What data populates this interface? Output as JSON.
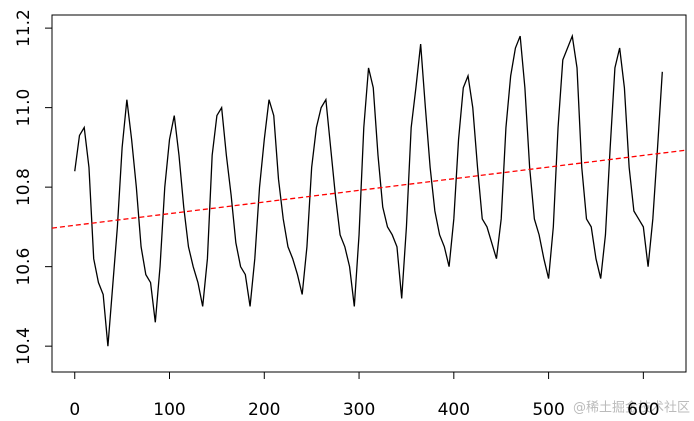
{
  "chart_data": {
    "type": "line",
    "x": [
      0,
      5,
      10,
      15,
      20,
      25,
      30,
      35,
      40,
      45,
      50,
      55,
      60,
      65,
      70,
      75,
      80,
      85,
      90,
      95,
      100,
      105,
      110,
      115,
      120,
      125,
      130,
      135,
      140,
      145,
      150,
      155,
      160,
      165,
      170,
      175,
      180,
      185,
      190,
      195,
      200,
      205,
      210,
      215,
      220,
      225,
      230,
      235,
      240,
      245,
      250,
      255,
      260,
      265,
      270,
      275,
      280,
      285,
      290,
      295,
      300,
      305,
      310,
      315,
      320,
      325,
      330,
      335,
      340,
      345,
      350,
      355,
      360,
      365,
      370,
      375,
      380,
      385,
      390,
      395,
      400,
      405,
      410,
      415,
      420,
      425,
      430,
      435,
      440,
      445,
      450,
      455,
      460,
      465,
      470,
      475,
      480,
      485,
      490,
      495,
      500,
      505,
      510,
      515,
      520,
      525,
      530,
      535,
      540,
      545,
      550,
      555,
      560,
      565,
      570,
      575,
      580,
      585,
      590,
      595,
      600,
      605,
      610,
      615,
      620
    ],
    "series": [
      {
        "color": "#000000",
        "dash": false,
        "values": [
          10.84,
          10.93,
          10.95,
          10.85,
          10.62,
          10.56,
          10.53,
          10.4,
          10.55,
          10.7,
          10.9,
          11.02,
          10.92,
          10.8,
          10.65,
          10.58,
          10.56,
          10.46,
          10.6,
          10.8,
          10.92,
          10.98,
          10.88,
          10.75,
          10.65,
          10.6,
          10.56,
          10.5,
          10.62,
          10.88,
          10.98,
          11.0,
          10.88,
          10.78,
          10.66,
          10.6,
          10.58,
          10.5,
          10.62,
          10.8,
          10.92,
          11.02,
          10.98,
          10.82,
          10.72,
          10.65,
          10.62,
          10.58,
          10.53,
          10.65,
          10.85,
          10.95,
          11.0,
          11.02,
          10.9,
          10.78,
          10.68,
          10.65,
          10.6,
          10.5,
          10.68,
          10.95,
          11.1,
          11.05,
          10.88,
          10.75,
          10.7,
          10.68,
          10.65,
          10.52,
          10.7,
          10.95,
          11.05,
          11.16,
          11.0,
          10.85,
          10.74,
          10.68,
          10.65,
          10.6,
          10.72,
          10.92,
          11.05,
          11.08,
          11.0,
          10.85,
          10.72,
          10.7,
          10.66,
          10.62,
          10.72,
          10.95,
          11.08,
          11.15,
          11.18,
          11.05,
          10.85,
          10.72,
          10.68,
          10.62,
          10.57,
          10.7,
          10.95,
          11.12,
          11.15,
          11.18,
          11.1,
          10.85,
          10.72,
          10.7,
          10.62,
          10.57,
          10.68,
          10.9,
          11.1,
          11.15,
          11.05,
          10.85,
          10.74,
          10.72,
          10.7,
          10.6,
          10.72,
          10.9,
          11.09
        ]
      },
      {
        "color": "#ff0000",
        "dash": true,
        "x": [
          -24,
          645
        ],
        "values": [
          10.697,
          10.893
        ]
      }
    ],
    "xlim": [
      -24,
      645
    ],
    "ylim": [
      10.335,
      11.233
    ],
    "xticks": [
      0,
      100,
      200,
      300,
      400,
      500,
      600
    ],
    "yticks": [
      10.4,
      10.6,
      10.8,
      {
        "value": 11,
        "label": "11.0"
      },
      11.2
    ],
    "watermark": "@稀土掘金技术社区"
  }
}
